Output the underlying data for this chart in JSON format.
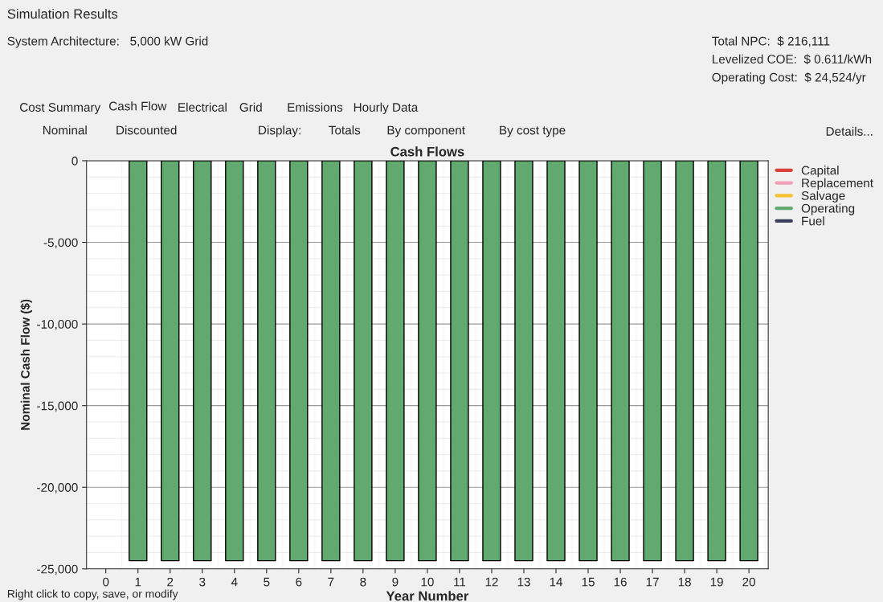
{
  "chart_data": {
    "type": "bar",
    "title": "Cash Flows",
    "xlabel": "Year Number",
    "ylabel": "Nominal Cash Flow ($)",
    "categories": [
      "0",
      "1",
      "2",
      "3",
      "4",
      "5",
      "6",
      "7",
      "8",
      "9",
      "10",
      "11",
      "12",
      "13",
      "14",
      "15",
      "16",
      "17",
      "18",
      "19",
      "20"
    ],
    "series": [
      {
        "name": "Capital",
        "color": "#d9413c",
        "values": [
          null,
          null,
          null,
          null,
          null,
          null,
          null,
          null,
          null,
          null,
          null,
          null,
          null,
          null,
          null,
          null,
          null,
          null,
          null,
          null,
          null
        ]
      },
      {
        "name": "Replacement",
        "color": "#f0a0b8",
        "values": [
          null,
          null,
          null,
          null,
          null,
          null,
          null,
          null,
          null,
          null,
          null,
          null,
          null,
          null,
          null,
          null,
          null,
          null,
          null,
          null,
          null
        ]
      },
      {
        "name": "Salvage",
        "color": "#f7c132",
        "values": [
          null,
          null,
          null,
          null,
          null,
          null,
          null,
          null,
          null,
          null,
          null,
          null,
          null,
          null,
          null,
          null,
          null,
          null,
          null,
          null,
          null
        ]
      },
      {
        "name": "Operating",
        "color": "#62a96f",
        "values": [
          null,
          -24500,
          -24500,
          -24500,
          -24500,
          -24500,
          -24500,
          -24500,
          -24500,
          -24500,
          -24500,
          -24500,
          -24500,
          -24500,
          -24500,
          -24500,
          -24500,
          -24500,
          -24500,
          -24500,
          -24500
        ]
      },
      {
        "name": "Fuel",
        "color": "#3a3f5c",
        "values": [
          null,
          null,
          null,
          null,
          null,
          null,
          null,
          null,
          null,
          null,
          null,
          null,
          null,
          null,
          null,
          null,
          null,
          null,
          null,
          null,
          null
        ]
      }
    ],
    "ylim": [
      -25000,
      0
    ],
    "yticks": [
      {
        "value": -25000,
        "label": "-25,000"
      },
      {
        "value": -20000,
        "label": "-20,000"
      },
      {
        "value": -15000,
        "label": "-15,000"
      },
      {
        "value": -10000,
        "label": "-10,000"
      },
      {
        "value": -5000,
        "label": "-5,000"
      },
      0
    ],
    "grid": true,
    "legend": "right",
    "annotations": [
      "Simulation Results",
      "System Architecture:   5,000 kW Grid",
      "Total NPC:  $ 216,111",
      "Levelized COE:  $ 0.611/kWh",
      "Operating Cost:  $ 24,524/yr",
      "Cost Summary",
      "Cash Flow",
      "Electrical",
      "Grid",
      "Emissions",
      "Hourly Data",
      "Nominal",
      "Discounted",
      "Display:",
      "Totals",
      "By component",
      "By cost type",
      "Details...",
      "Right click to copy, save, or modify"
    ]
  }
}
